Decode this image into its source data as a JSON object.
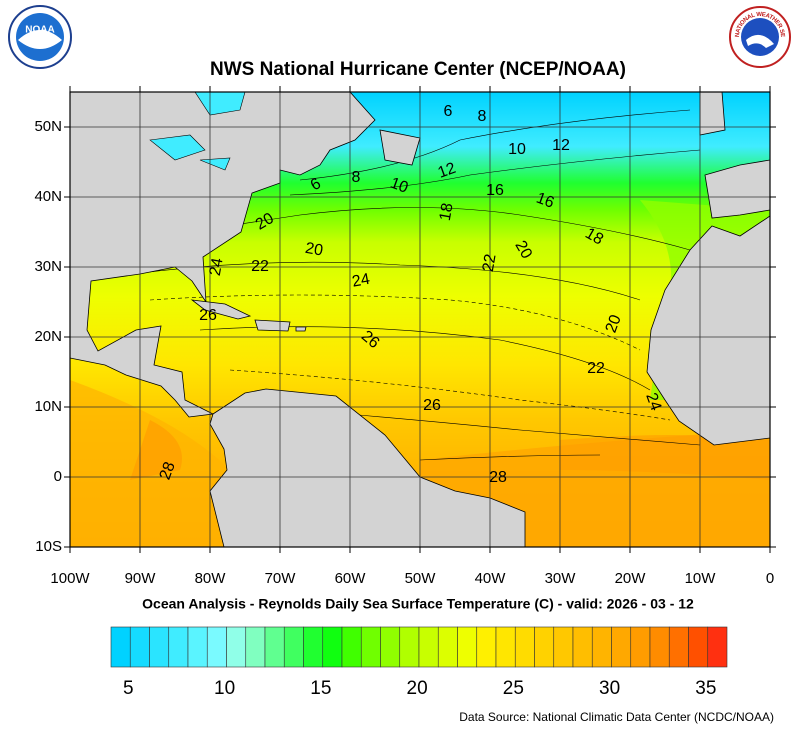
{
  "header": {
    "title": "NWS National Hurricane Center (NCEP/NOAA)",
    "noaa_logo_text": "NOAA",
    "nws_logo_text": "NATIONAL WEATHER SERVICE"
  },
  "map": {
    "lat_labels": [
      "50N",
      "40N",
      "30N",
      "20N",
      "10N",
      "0",
      "10S"
    ],
    "lon_labels": [
      "100W",
      "90W",
      "80W",
      "70W",
      "60W",
      "50W",
      "40W",
      "30W",
      "20W",
      "10W",
      "0"
    ],
    "contour_labels": [
      "6",
      "8",
      "10",
      "12",
      "6",
      "8",
      "10",
      "12",
      "16",
      "16",
      "18",
      "18",
      "20",
      "20",
      "22",
      "20",
      "22",
      "24",
      "24",
      "26",
      "26",
      "20",
      "22",
      "24",
      "26",
      "28",
      "28"
    ]
  },
  "caption": "Ocean Analysis - Reynolds Daily Sea Surface Temperature (C) - valid: 2026 - 03 - 12",
  "colorbar": {
    "labels": [
      5,
      10,
      15,
      20,
      25,
      30,
      35
    ],
    "colors": [
      "#00d2ff",
      "#15dbff",
      "#2ae4ff",
      "#40ecff",
      "#5af4ff",
      "#7afaff",
      "#90ffe8",
      "#80ffc0",
      "#60ff90",
      "#40ff60",
      "#20ff30",
      "#10ff10",
      "#40ff00",
      "#70ff00",
      "#90ff00",
      "#b0ff00",
      "#c8ff00",
      "#dcff00",
      "#eeff00",
      "#fff000",
      "#ffe600",
      "#ffdc00",
      "#ffd200",
      "#ffc800",
      "#ffbe00",
      "#ffb400",
      "#ffa800",
      "#ff9c00",
      "#ff8c00",
      "#ff7000",
      "#ff5000",
      "#ff3010"
    ]
  },
  "source": "Data Source: National Climatic Data Center (NCDC/NOAA)"
}
